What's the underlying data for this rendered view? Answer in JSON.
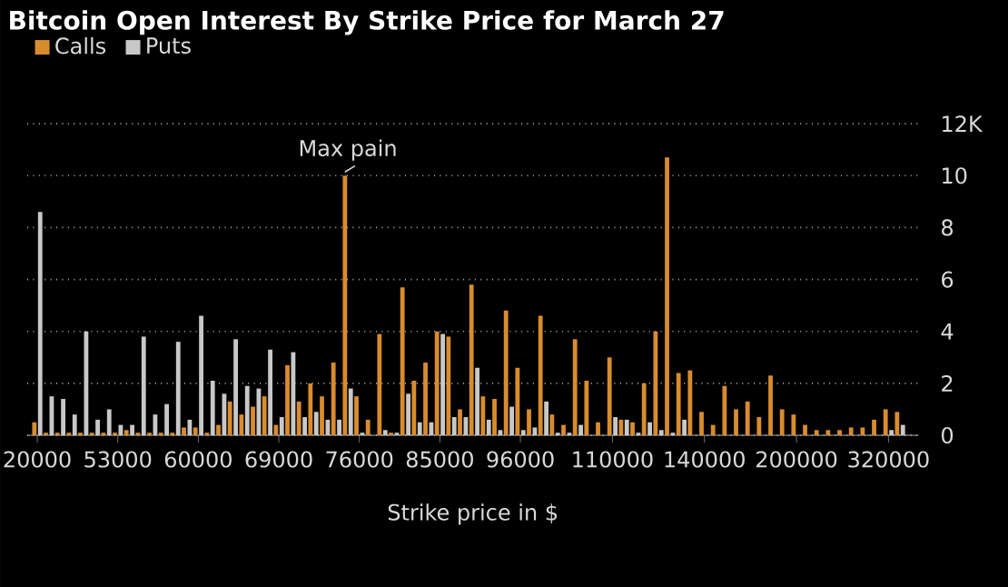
{
  "chart_data": {
    "type": "bar",
    "title": "Bitcoin Open Interest By Strike Price for March 27",
    "xlabel": "Strike price in $",
    "categories": [
      "20000",
      null,
      null,
      null,
      null,
      null,
      null,
      "53000",
      null,
      null,
      null,
      null,
      null,
      null,
      "60000",
      null,
      null,
      null,
      null,
      null,
      null,
      "69000",
      null,
      null,
      null,
      null,
      null,
      null,
      "76000",
      null,
      null,
      null,
      null,
      null,
      null,
      "85000",
      null,
      null,
      null,
      null,
      null,
      null,
      "96000",
      null,
      null,
      null,
      null,
      null,
      null,
      null,
      "110000",
      null,
      null,
      null,
      null,
      null,
      null,
      null,
      "140000",
      null,
      null,
      null,
      null,
      null,
      null,
      null,
      "200000",
      null,
      null,
      null,
      null,
      null,
      null,
      null,
      "320000",
      null
    ],
    "series": [
      {
        "name": "Calls",
        "color": "#d98c2e",
        "values": [
          0.5,
          0.1,
          0.1,
          0.1,
          0.1,
          0.1,
          0.1,
          0.1,
          0.2,
          0.1,
          0.1,
          0.1,
          0.1,
          0.3,
          0.3,
          0.1,
          0.4,
          1.3,
          0.8,
          1.1,
          1.5,
          0.4,
          2.7,
          1.3,
          2.0,
          1.5,
          2.8,
          10.0,
          1.5,
          0.6,
          3.9,
          0.1,
          5.7,
          2.1,
          2.8,
          4.0,
          3.8,
          1.0,
          5.8,
          1.5,
          1.4,
          4.8,
          2.6,
          1.0,
          4.6,
          0.8,
          0.4,
          3.7,
          2.1,
          0.5,
          3.0,
          0.6,
          0.5,
          2.0,
          4.0,
          10.7,
          2.4,
          2.5,
          0.9,
          0.4,
          1.9,
          1.0,
          1.3,
          0.7,
          2.3,
          1.0,
          0.8,
          0.4,
          0.2,
          0.2,
          0.2,
          0.3,
          0.3,
          0.6,
          1.0,
          0.9
        ]
      },
      {
        "name": "Puts",
        "color": "#c8c8c8",
        "values": [
          8.6,
          1.5,
          1.4,
          0.8,
          4.0,
          0.6,
          1.0,
          0.4,
          0.4,
          3.8,
          0.8,
          1.2,
          3.6,
          0.6,
          4.6,
          2.1,
          1.6,
          3.7,
          1.9,
          1.8,
          3.3,
          0.7,
          3.2,
          0.7,
          0.9,
          0.6,
          0.6,
          1.8,
          0.1,
          0,
          0.2,
          0.1,
          1.6,
          0.5,
          0.5,
          3.9,
          0.7,
          0.7,
          2.6,
          0.6,
          0.2,
          1.1,
          0.2,
          0.3,
          1.3,
          0.1,
          0.1,
          0.4,
          0,
          0,
          0.7,
          0.6,
          0.1,
          0.5,
          0.2,
          0.1,
          0.6,
          0,
          0,
          0,
          0,
          0,
          0,
          0,
          0,
          0,
          0,
          0,
          0,
          0,
          0,
          0,
          0,
          0,
          0.2,
          0.4
        ]
      }
    ],
    "ylim": [
      0,
      12
    ],
    "yticks": [
      0,
      2,
      4,
      6,
      8,
      10,
      {
        "value": 12,
        "label": "12K"
      }
    ],
    "grid": "y",
    "legend": "top left",
    "annotations": [
      {
        "text": "Max pain",
        "y": 10.0
      }
    ]
  }
}
